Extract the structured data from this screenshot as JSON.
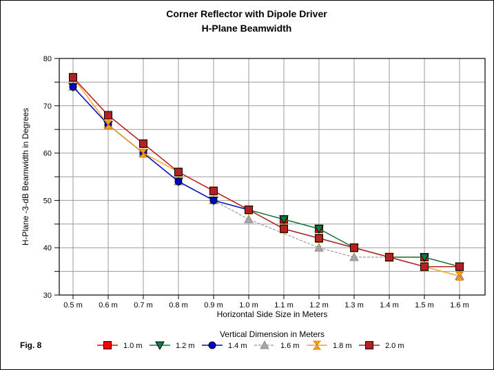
{
  "figure": {
    "fig_label": "Fig. 8"
  },
  "chart_data": {
    "type": "line",
    "title_line1": "Corner Reflector with Dipole Driver",
    "title_line2": "H-Plane Beamwidth",
    "xlabel": "Horizontal Side Size in Meters",
    "ylabel": "H-Plane -3-dB Beamwidth in Degrees",
    "legend_title": "Vertical Dimension in Meters",
    "legend_position": "bottom",
    "grid": true,
    "categories": [
      "0.5 m",
      "0.6 m",
      "0.7 m",
      "0.8 m",
      "0.9 m",
      "1.0 m",
      "1.1 m",
      "1.2 m",
      "1.3 m",
      "1.4 m",
      "1.5 m",
      "1.6 m"
    ],
    "x_values_m": [
      0.5,
      0.6,
      0.7,
      0.8,
      0.9,
      1.0,
      1.1,
      1.2,
      1.3,
      1.4,
      1.5,
      1.6
    ],
    "ylim": [
      30,
      80
    ],
    "ytick_label_step": 10,
    "ygrid_step": 5,
    "series": [
      {
        "name": "1.0 m",
        "color": "#FF0000",
        "stroke_accent": "#000000",
        "marker": "square",
        "dash": "",
        "values": [
          76,
          68,
          62,
          56,
          52,
          48,
          46,
          44,
          40,
          38,
          38,
          36
        ]
      },
      {
        "name": "1.2 m",
        "color": "#008040",
        "stroke_accent": "#004020",
        "marker": "triangle-down",
        "dash": "",
        "values": [
          74,
          66,
          60,
          54,
          50,
          48,
          46,
          44,
          40,
          38,
          38,
          36
        ]
      },
      {
        "name": "1.4 m",
        "color": "#0000CD",
        "stroke_accent": "#000066",
        "marker": "circle",
        "dash": "",
        "values": [
          74,
          66,
          60,
          54,
          50,
          48,
          44,
          42,
          40,
          38,
          36,
          36
        ]
      },
      {
        "name": "1.6 m",
        "color": "#A6A6A6",
        "stroke_accent": "#8C8C8C",
        "marker": "triangle-up",
        "dash": "4,2",
        "values": [
          74,
          66,
          60,
          54,
          50,
          46,
          null,
          40,
          38,
          38,
          36,
          34
        ]
      },
      {
        "name": "1.8 m",
        "color": "#FFA11E",
        "stroke_accent": "#D88000",
        "marker": "hourglass",
        "dash": "",
        "values": [
          76,
          66,
          60,
          56,
          52,
          48,
          44,
          42,
          40,
          38,
          36,
          34
        ]
      },
      {
        "name": "2.0 m",
        "color": "#B22222",
        "stroke_accent": "#6E0F0F",
        "marker": "square",
        "dash": "",
        "values": [
          76,
          68,
          62,
          56,
          52,
          48,
          44,
          42,
          40,
          38,
          36,
          36
        ]
      }
    ],
    "draw_order": [
      3,
      0,
      1,
      2,
      4,
      5
    ],
    "colors": {
      "gridline": "#999999",
      "frame": "#000000",
      "background": "#FFFFFF"
    }
  }
}
